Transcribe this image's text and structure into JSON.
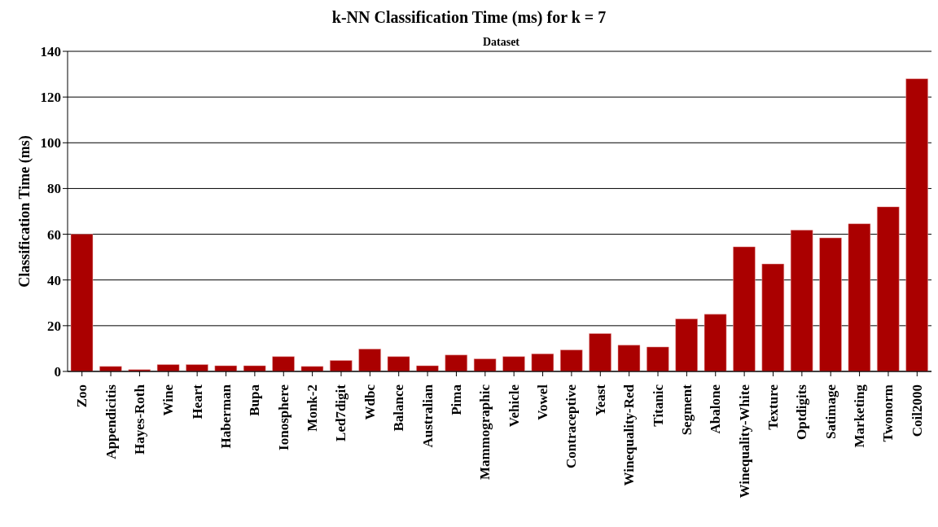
{
  "chart_data": {
    "type": "bar",
    "title": "k-NN Classification Time (ms) for k = 7",
    "xlabel": "Dataset",
    "ylabel": "Classification Time (ms)",
    "categories": [
      "Zoo",
      "Appendicitis",
      "Hayes-Roth",
      "Wine",
      "Heart",
      "Haberman",
      "Bupa",
      "Ionosphere",
      "Monk-2",
      "Led7digit",
      "Wdbc",
      "Balance",
      "Australian",
      "Pima",
      "Mammographic",
      "Vehicle",
      "Vowel",
      "Contraceptive",
      "Yeast",
      "Winequality-Red",
      "Titanic",
      "Segment",
      "Abalone",
      "Winequality-White",
      "Texture",
      "Optdigits",
      "Satimage",
      "Marketing",
      "Twonorm",
      "Coil2000"
    ],
    "values": [
      60,
      2.2,
      0.8,
      3.0,
      3.0,
      2.5,
      2.5,
      6.5,
      2.2,
      4.8,
      9.8,
      6.5,
      2.5,
      7.2,
      5.5,
      6.5,
      7.7,
      9.4,
      16.6,
      11.5,
      10.7,
      23,
      25,
      54.5,
      47,
      61.8,
      58.4,
      64.6,
      72,
      128
    ],
    "color": "#aa0000",
    "ylim": [
      0,
      140
    ],
    "yticks": [
      0,
      20,
      40,
      60,
      80,
      100,
      120,
      140
    ],
    "grid": "y"
  }
}
